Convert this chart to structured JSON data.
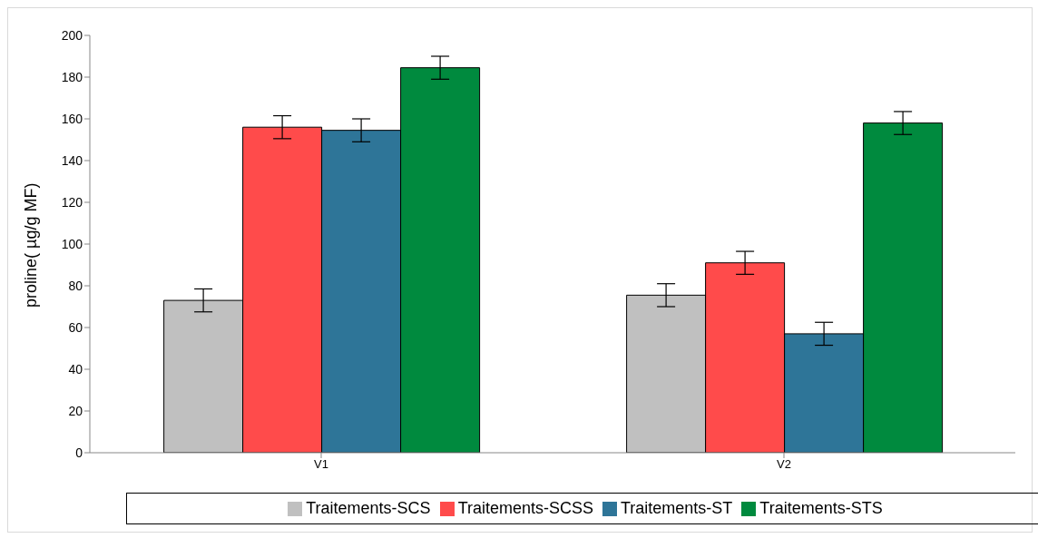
{
  "chart_data": {
    "type": "bar",
    "ylabel": "proline( µg/g MF)",
    "categories": [
      "V1",
      "V2"
    ],
    "series": [
      {
        "name": "Traitements-SCS",
        "color": "#c0c0c0",
        "values": [
          73,
          75.5
        ],
        "errors": [
          5.5,
          5.5
        ]
      },
      {
        "name": "Traitements-SCSS",
        "color": "#ff4b4b",
        "values": [
          156,
          91
        ],
        "errors": [
          5.5,
          5.5
        ]
      },
      {
        "name": "Traitements-ST",
        "color": "#2e7598",
        "values": [
          154.5,
          57
        ],
        "errors": [
          5.5,
          5.5
        ]
      },
      {
        "name": "Traitements-STS",
        "color": "#008a3e",
        "values": [
          184.5,
          158
        ],
        "errors": [
          5.5,
          5.5
        ]
      }
    ],
    "ylim": [
      0,
      200
    ],
    "yticks": [
      0,
      20,
      40,
      60,
      80,
      100,
      120,
      140,
      160,
      180,
      200
    ],
    "grid": false,
    "legend": "bottom"
  }
}
